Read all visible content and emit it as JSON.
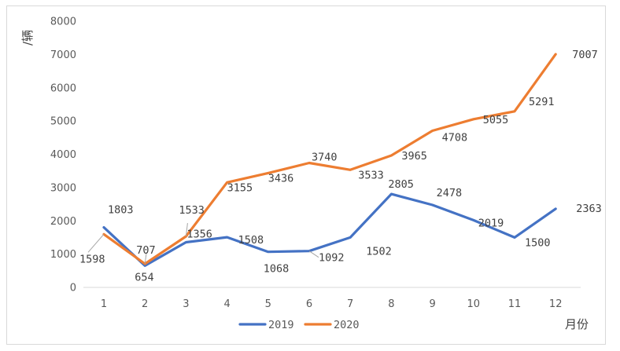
{
  "chart_data": {
    "type": "line",
    "title": "",
    "xlabel": "月份",
    "ylabel": "/辆",
    "categories": [
      "1",
      "2",
      "3",
      "4",
      "5",
      "6",
      "7",
      "8",
      "9",
      "10",
      "11",
      "12"
    ],
    "ylim": [
      0,
      8000
    ],
    "yticks": [
      0,
      1000,
      2000,
      3000,
      4000,
      5000,
      6000,
      7000,
      8000
    ],
    "grid": false,
    "legend_position": "bottom",
    "series": [
      {
        "name": "2019",
        "color": "#4472C4",
        "values": [
          1803,
          654,
          1356,
          1508,
          1068,
          1092,
          1502,
          2805,
          2478,
          2019,
          1500,
          2363
        ],
        "labels": [
          "1803",
          "654",
          "1356",
          "1508",
          "1068",
          "1092",
          "1502",
          "2805",
          "2478",
          "2019",
          "1500",
          "2363"
        ]
      },
      {
        "name": "2020",
        "color": "#ED7D31",
        "values": [
          1598,
          707,
          1533,
          3155,
          3436,
          3740,
          3533,
          3965,
          4708,
          5055,
          5291,
          7007
        ],
        "labels": [
          "1598",
          "707",
          "1533",
          "3155",
          "3436",
          "3740",
          "3533",
          "3965",
          "4708",
          "5055",
          "5291",
          "7007"
        ]
      }
    ]
  }
}
